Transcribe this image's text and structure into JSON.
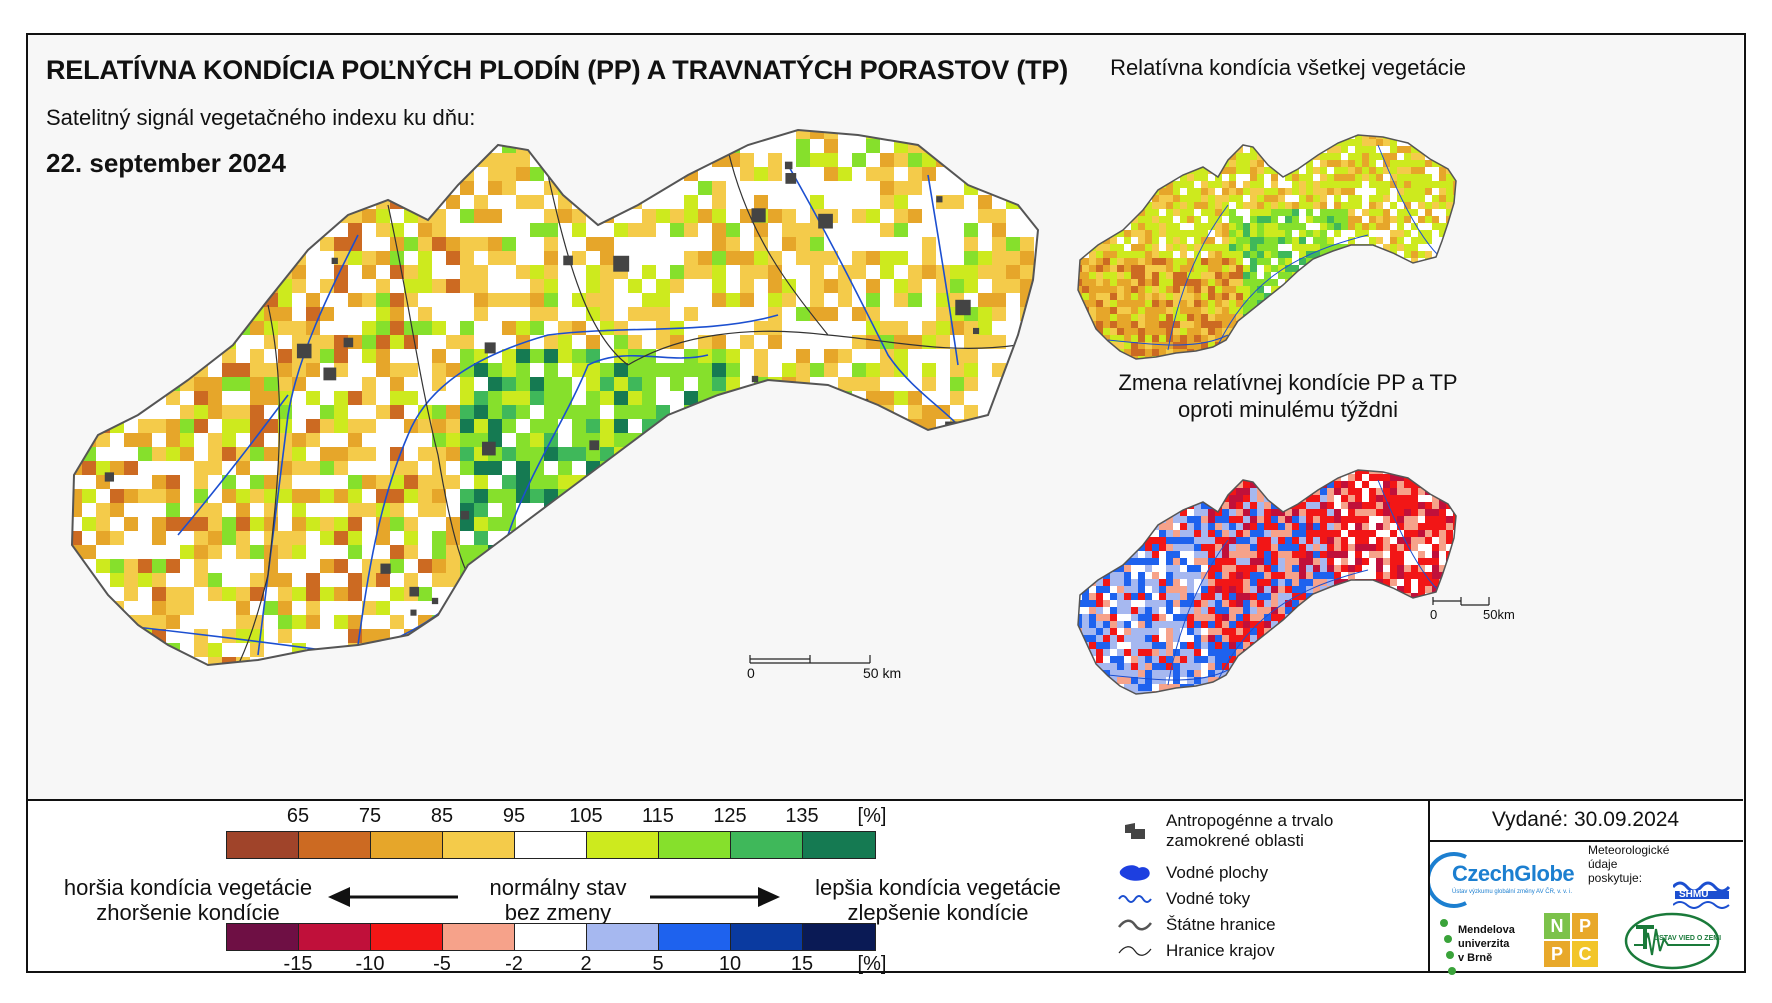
{
  "header": {
    "title": "RELATÍVNA KONDÍCIA POĽNÝCH PLODÍN (PP) A TRAVNATÝCH PORASTOV (TP)",
    "subtitle": "Satelitný signál vegetačného indexu ku dňu:",
    "date": "22. september 2024"
  },
  "insets": {
    "top_title": "Relatívna kondícia všetkej vegetácie",
    "bottom_title_line1": "Zmena relatívnej kondície PP a TP",
    "bottom_title_line2": "oproti minulému týždni"
  },
  "scale_main": {
    "zero": "0",
    "end": "50 km"
  },
  "scale_inset": {
    "zero": "0",
    "end": "50km"
  },
  "legend_condition": {
    "ticks": [
      "65",
      "75",
      "85",
      "95",
      "105",
      "115",
      "125",
      "135",
      "[%]"
    ],
    "colors": [
      "#a0442a",
      "#cc6a22",
      "#e6a62a",
      "#f4cb4a",
      "#ffffff",
      "#cdea1e",
      "#86e02c",
      "#3fb85a",
      "#157a52"
    ]
  },
  "legend_change": {
    "ticks": [
      "-15",
      "-10",
      "-5",
      "-2",
      "2",
      "5",
      "10",
      "15",
      "[%]"
    ],
    "colors": [
      "#6e0f44",
      "#c0103a",
      "#f21616",
      "#f6a28a",
      "#ffffff",
      "#a6b8f0",
      "#1e62ee",
      "#0a3aa0",
      "#0a1a55"
    ]
  },
  "descriptions": {
    "worse_line1": "horšia kondícia vegetácie",
    "worse_line2": "zhoršenie kondície",
    "normal_line1": "normálny stav",
    "normal_line2": "bez zmeny",
    "better_line1": "lepšia kondícia vegetácie",
    "better_line2": "zlepšenie kondície"
  },
  "key": {
    "urban_line1": "Antropogénne a trvalo",
    "urban_line2": "zamokrené oblasti",
    "water": "Vodné plochy",
    "rivers": "Vodné toky",
    "border": "Štátne hranice",
    "regions": "Hranice krajov"
  },
  "footer": {
    "issued": "Vydané: 30.09.2024",
    "czechglobe": "CzechGlobe",
    "czechglobe_sub": "Ústav výzkumu globální změny AV ČR, v. v. i.",
    "met_line1": "Meteorologické",
    "met_line2": "údaje",
    "met_line3": "poskytuje:",
    "shmu": "SHMÚ",
    "mendel_line1": "Mendelova",
    "mendel_line2": "univerzita",
    "mendel_line3": "v Brně",
    "nppc": [
      "N",
      "P",
      "P",
      "C"
    ],
    "uvoz": "ÚSTAV VIED O ZEMI"
  },
  "colors": {
    "river": "#1c4fd0",
    "urban": "#444444",
    "water_body": "#1d3fe0",
    "frame": "#111111"
  }
}
